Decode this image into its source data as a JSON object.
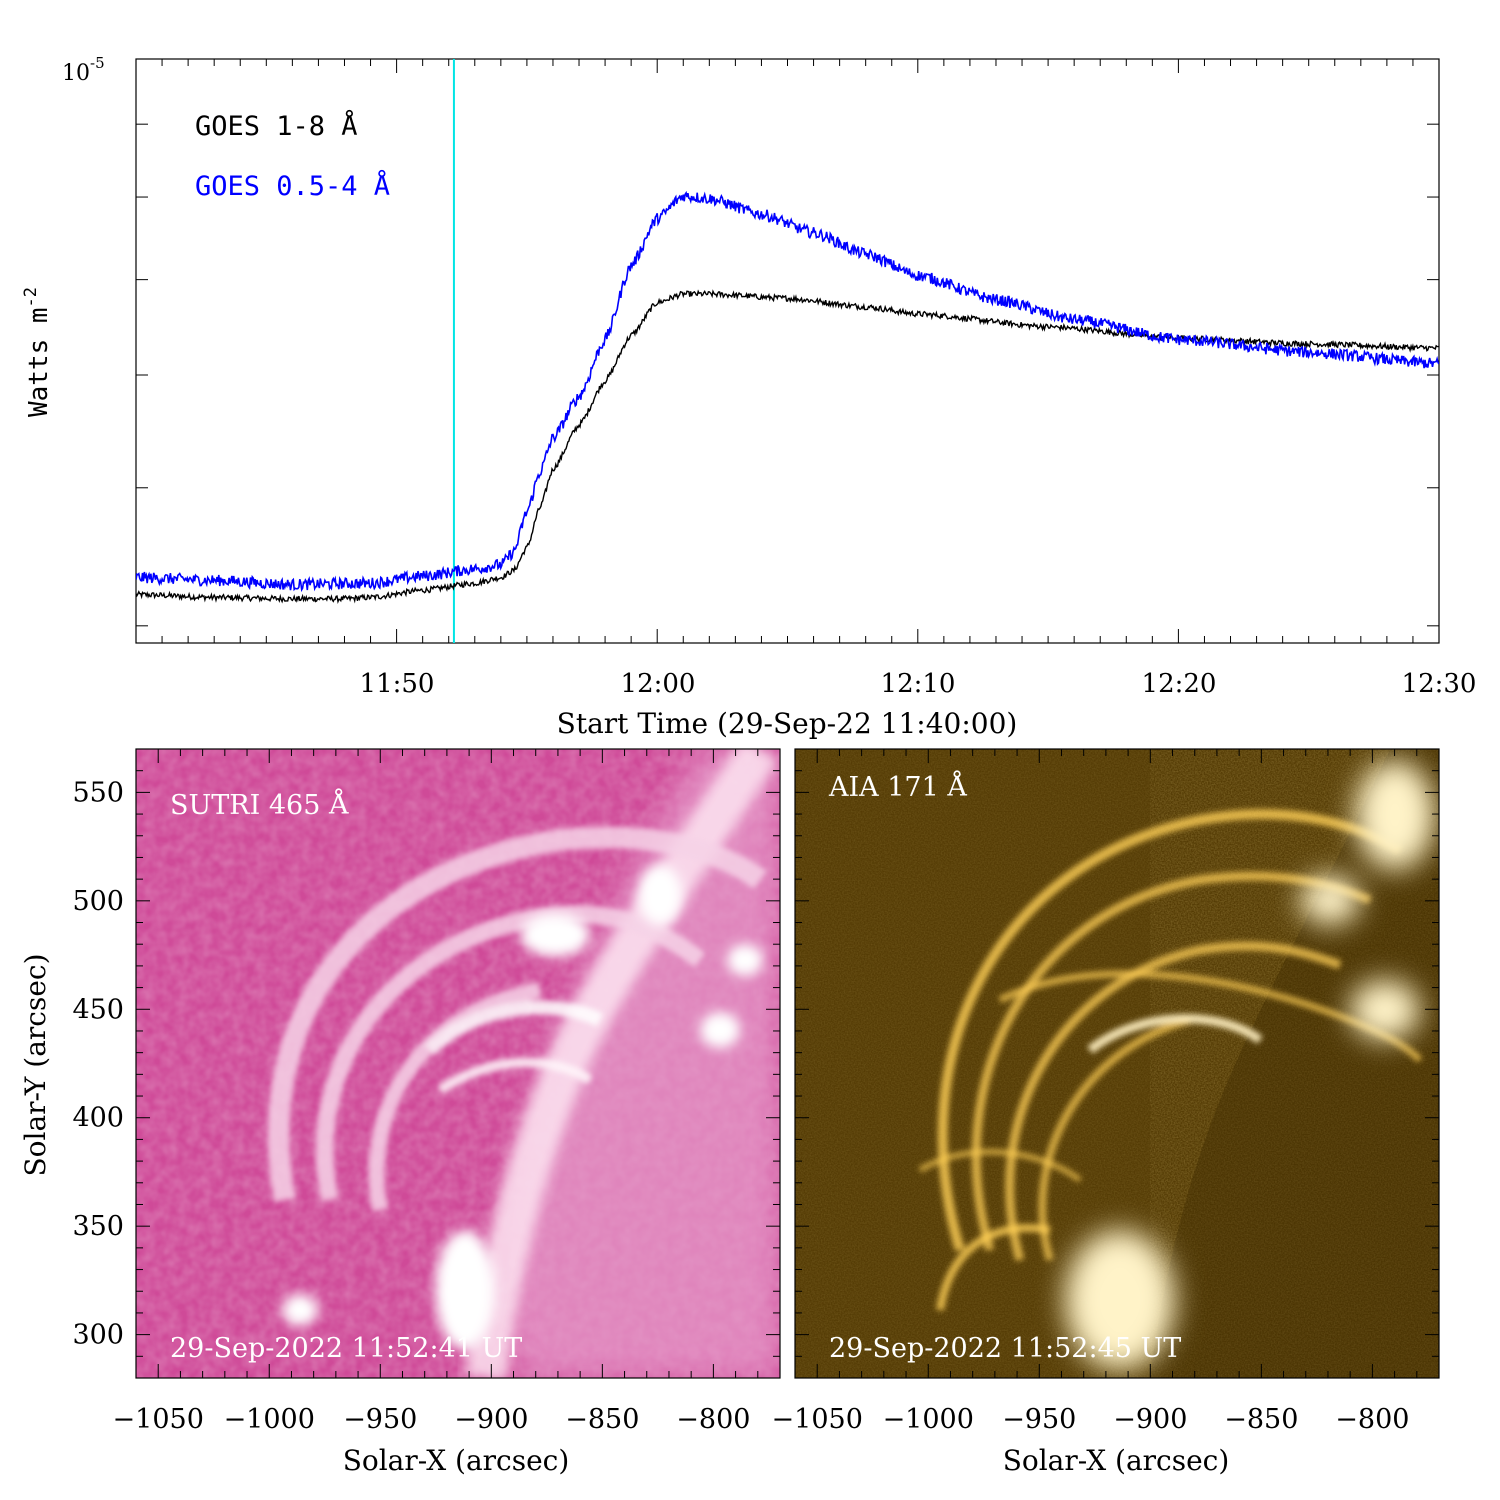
{
  "chart_data": [
    {
      "type": "line",
      "title": "",
      "xlabel": "Start Time (29-Sep-22 11:40:00)",
      "ylabel": "Watts m",
      "ylabel_sup": "-2",
      "y_top_label": {
        "base": "10",
        "exp": "-5"
      },
      "x_tick_labels": [
        "11:50",
        "12:00",
        "12:10",
        "12:20",
        "12:30"
      ],
      "x_ticks_min": [
        10,
        20,
        30,
        40,
        50
      ],
      "xlim_min": [
        0,
        50
      ],
      "log_ylim": [
        -5.41,
        -5.0
      ],
      "legend": [
        {
          "name": "GOES 1-8 Å",
          "color": "#000000"
        },
        {
          "name": "GOES 0.5-4 Å",
          "color": "#0000ff"
        }
      ],
      "marker_line": {
        "t_min": 12.2,
        "color": "#00e5e5"
      },
      "series": [
        {
          "name": "GOES 1-8 Å",
          "color": "#000000",
          "noise": 0.002,
          "x": [
            0,
            3,
            6,
            8,
            9,
            11,
            13,
            14,
            14.5,
            15,
            15.5,
            16,
            17,
            18,
            19,
            20,
            21,
            22,
            25,
            28,
            30,
            35,
            40,
            45,
            50
          ],
          "y": [
            -5.376,
            -5.378,
            -5.379,
            -5.379,
            -5.378,
            -5.373,
            -5.368,
            -5.364,
            -5.359,
            -5.343,
            -5.315,
            -5.288,
            -5.257,
            -5.226,
            -5.194,
            -5.171,
            -5.165,
            -5.165,
            -5.168,
            -5.174,
            -5.179,
            -5.188,
            -5.196,
            -5.2,
            -5.203
          ]
        },
        {
          "name": "GOES 0.5-4 Å",
          "color": "#0000ff",
          "noise": 0.004,
          "x": [
            0,
            3,
            6,
            9,
            11,
            13,
            14,
            14.5,
            15,
            15.5,
            16,
            17,
            18,
            19,
            20,
            21,
            22,
            24,
            26,
            28,
            30,
            33,
            36,
            40,
            45,
            50
          ],
          "y": [
            -5.364,
            -5.366,
            -5.369,
            -5.368,
            -5.363,
            -5.358,
            -5.355,
            -5.346,
            -5.318,
            -5.29,
            -5.266,
            -5.237,
            -5.197,
            -5.145,
            -5.112,
            -5.096,
            -5.098,
            -5.109,
            -5.122,
            -5.137,
            -5.152,
            -5.169,
            -5.183,
            -5.197,
            -5.206,
            -5.214
          ]
        }
      ]
    },
    {
      "type": "heatmap",
      "panel_label": "SUTRI 465 Å",
      "timestamp": "29-Sep-2022 11:52:41 UT",
      "xlabel": "Solar-X (arcsec)",
      "ylabel": "Solar-Y (arcsec)",
      "xlim": [
        -1060,
        -770
      ],
      "ylim": [
        280,
        570
      ],
      "x_ticks": [
        -1050,
        -1000,
        -950,
        -900,
        -850,
        -800
      ],
      "y_ticks": [
        300,
        350,
        400,
        450,
        500,
        550
      ],
      "colors": {
        "dark": "#c93a8c",
        "mid": "#e690c2",
        "bright": "#fff2f8"
      }
    },
    {
      "type": "heatmap",
      "panel_label": "AIA 171 Å",
      "timestamp": "29-Sep-2022 11:52:45 UT",
      "xlabel": "Solar-X (arcsec)",
      "xlim": [
        -1060,
        -770
      ],
      "ylim": [
        280,
        570
      ],
      "x_ticks": [
        -1050,
        -1000,
        -950,
        -900,
        -850,
        -800
      ],
      "colors": {
        "dark": "#2a1e03",
        "mid": "#9b6a04",
        "bright": "#ffe6a0"
      }
    }
  ]
}
